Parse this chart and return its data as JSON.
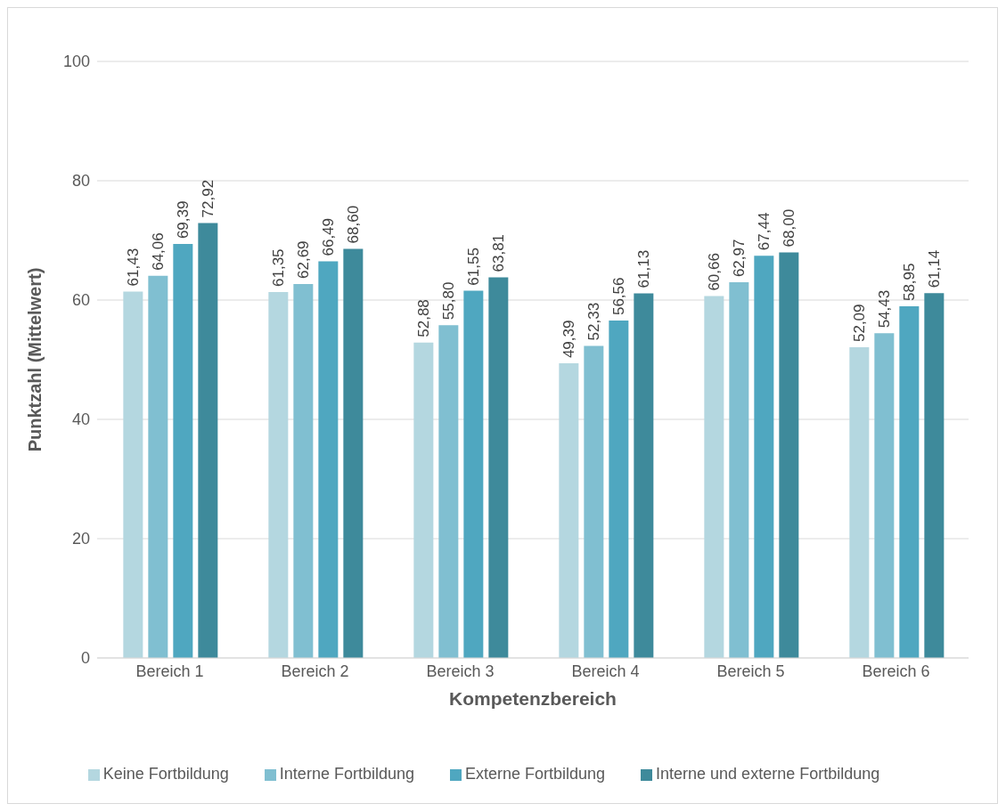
{
  "chart_data": {
    "type": "bar",
    "xlabel": "Kompetenzbereich",
    "ylabel": "Punktzahl (Mittelwert)",
    "categories": [
      "Bereich 1",
      "Bereich 2",
      "Bereich 3",
      "Bereich 4",
      "Bereich 5",
      "Bereich 6"
    ],
    "series": [
      {
        "name": "Keine Fortbildung",
        "color": "#b4d7e0",
        "values": [
          61.43,
          61.35,
          52.88,
          49.39,
          60.66,
          52.09
        ],
        "value_labels": [
          "61,43",
          "61,35",
          "52,88",
          "49,39",
          "60,66",
          "52,09"
        ]
      },
      {
        "name": "Interne Fortbildung",
        "color": "#80bfd1",
        "values": [
          64.06,
          62.69,
          55.8,
          52.33,
          62.97,
          54.43
        ],
        "value_labels": [
          "64,06",
          "62,69",
          "55,80",
          "52,33",
          "62,97",
          "54,43"
        ]
      },
      {
        "name": "Externe Fortbildung",
        "color": "#4fa7c0",
        "values": [
          69.39,
          66.49,
          61.55,
          56.56,
          67.44,
          58.95
        ],
        "value_labels": [
          "69,39",
          "66,49",
          "61,55",
          "56,56",
          "67,44",
          "58,95"
        ]
      },
      {
        "name": "Interne und externe Fortbildung",
        "color": "#3e8a9b",
        "values": [
          72.92,
          68.6,
          63.81,
          61.13,
          68.0,
          61.14
        ],
        "value_labels": [
          "72,92",
          "68,60",
          "63,81",
          "61,13",
          "68,00",
          "61,14"
        ]
      }
    ],
    "ylim": [
      0,
      100
    ],
    "yticks": [
      0,
      20,
      40,
      60,
      80,
      100
    ],
    "grid": "y",
    "legend": "bottom"
  }
}
